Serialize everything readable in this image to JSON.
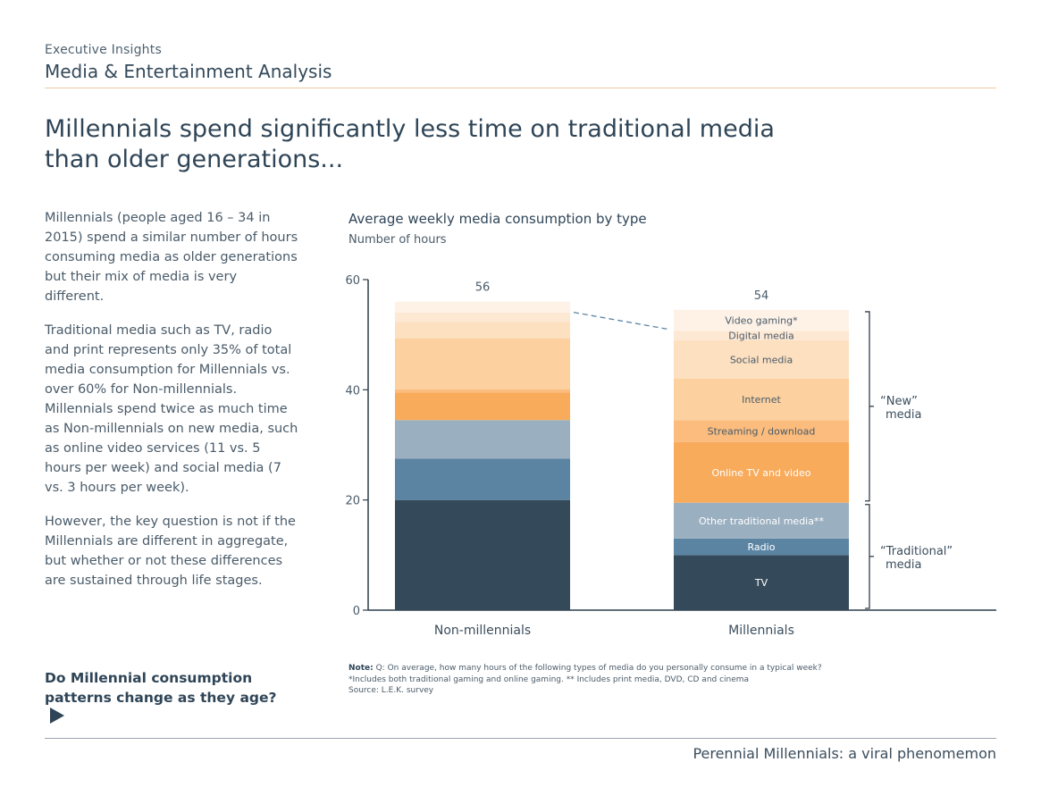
{
  "header": {
    "kicker": "Executive Insights",
    "title": "Media & Entertainment Analysis"
  },
  "headline": "Millennials spend significantly less time on traditional media than older generations...",
  "body": {
    "paragraphs": [
      "Millennials (people aged 16 – 34 in 2015) spend a similar number of hours consuming media as older generations but their mix of media is very different.",
      "Traditional media such as TV, radio and print represents only 35% of total media consumption for Millennials vs. over 60% for Non-millennials. Millennials spend twice as much time as Non-millennials on new media, such as online video services (11 vs. 5 hours per week) and social media (7 vs. 3 hours per week).",
      "However, the key question is not if the Millennials are different in aggregate, but whether or not these differences are sustained through life stages."
    ]
  },
  "cta": {
    "label": "Do Millennial consumption patterns change as they age?",
    "icon": "play-arrow-icon"
  },
  "chart_data": {
    "type": "bar",
    "stacked": true,
    "title": "Average weekly media consumption by type",
    "ylabel": "Number of hours",
    "xlabel": "",
    "ylim": [
      0,
      60
    ],
    "yticks": [
      "0",
      "20",
      "40",
      "60"
    ],
    "grid": false,
    "categories": [
      "Non-millennials",
      "Millennials"
    ],
    "totals": [
      "56",
      "54"
    ],
    "series": [
      {
        "name": "TV",
        "color": "#344a5b",
        "values": [
          20,
          10
        ]
      },
      {
        "name": "Radio",
        "color": "#5b84a3",
        "values": [
          7.5,
          3
        ]
      },
      {
        "name": "Other traditional media**",
        "color": "#9aafc0",
        "values": [
          7,
          6.5
        ]
      },
      {
        "name": "Online TV and video",
        "color": "#f9ab5c",
        "values": [
          5,
          11
        ]
      },
      {
        "name": "Streaming / download",
        "color": "#fbbc7d",
        "values": [
          0.6,
          4
        ]
      },
      {
        "name": "Internet",
        "color": "#fcd09f",
        "values": [
          9.2,
          7.5
        ]
      },
      {
        "name": "Social media",
        "color": "#fde0c0",
        "values": [
          3,
          7
        ]
      },
      {
        "name": "Digital media",
        "color": "#fde8d3",
        "values": [
          1.7,
          1.7
        ]
      },
      {
        "name": "Video gaming*",
        "color": "#fef2e7",
        "values": [
          2,
          3.8
        ]
      }
    ],
    "groups": [
      {
        "label": "“New” media",
        "from_series": 3,
        "to_series": 8
      },
      {
        "label": "“Traditional” media",
        "from_series": 0,
        "to_series": 2
      }
    ]
  },
  "notes": {
    "prefix": "Note:",
    "line1": " Q: On average, how many hours of the following types of media do you personally consume in a typical week?",
    "line2": "*Includes both traditional gaming and online gaming.  ** Includes print media, DVD, CD and cinema",
    "line3": "Source: L.E.K. survey"
  },
  "footer": {
    "text": "Perennial Millennials: a viral phenomemon"
  }
}
